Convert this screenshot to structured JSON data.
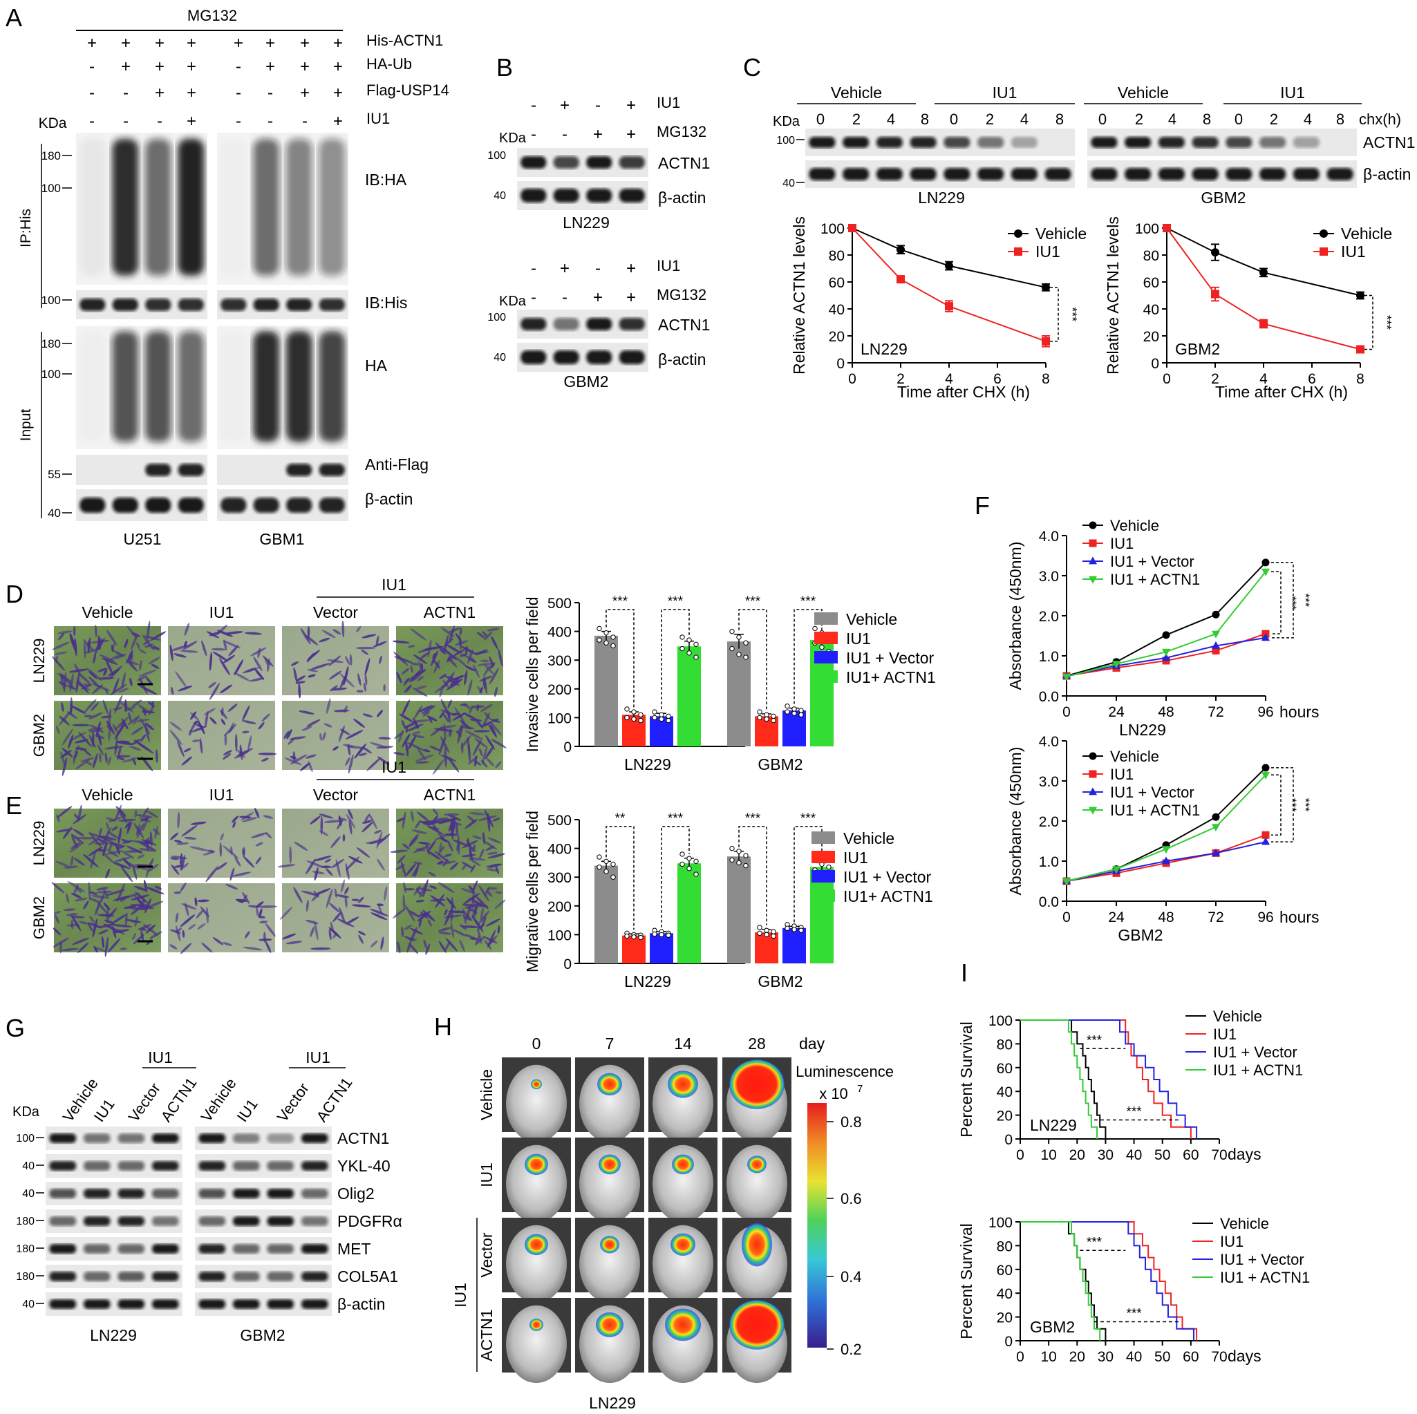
{
  "panels": {
    "A": {
      "letter": "A",
      "mg132": "MG132",
      "kda": "KDa",
      "cond_labels": [
        "His-ACTN1",
        "HA-Ub",
        "Flag-USP14",
        "IU1"
      ],
      "signs": [
        [
          "+",
          "+",
          "+",
          "+",
          "+",
          "+",
          "+",
          "+"
        ],
        [
          "-",
          "+",
          "+",
          "+",
          "-",
          "+",
          "+",
          "+"
        ],
        [
          "-",
          "-",
          "+",
          "+",
          "-",
          "-",
          "+",
          "+"
        ],
        [
          "-",
          "-",
          "-",
          "+",
          "-",
          "-",
          "-",
          "+"
        ]
      ],
      "side_ip": "IP:His",
      "side_input": "Input",
      "blot_labels": [
        "IB:HA",
        "IB:His",
        "HA",
        "Anti-Flag",
        "β-actin"
      ],
      "markers": [
        "180",
        "100",
        "100",
        "180",
        "100",
        "55",
        "40"
      ],
      "cells": [
        "U251",
        "GBM1"
      ]
    },
    "B": {
      "letter": "B",
      "row_labels": [
        "IU1",
        "MG132"
      ],
      "kda": "KDa",
      "signs": [
        [
          "-",
          "+",
          "-",
          "+"
        ],
        [
          "-",
          "-",
          "+",
          "+"
        ]
      ],
      "blot_labels": [
        "ACTN1",
        "β-actin"
      ],
      "markers": [
        "100",
        "40"
      ],
      "cells": [
        "LN229",
        "GBM2"
      ]
    },
    "C": {
      "letter": "C",
      "kda": "KDa",
      "groups": [
        "Vehicle",
        "IU1",
        "Vehicle",
        "IU1"
      ],
      "times": [
        "0",
        "2",
        "4",
        "8",
        "0",
        "2",
        "4",
        "8",
        "0",
        "2",
        "4",
        "8",
        "0",
        "2",
        "4",
        "8"
      ],
      "chx": "chx(h)",
      "blot_labels": [
        "ACTN1",
        "β-actin"
      ],
      "markers": [
        "100",
        "40"
      ],
      "cells": [
        "LN229",
        "GBM2"
      ]
    },
    "D": {
      "letter": "D",
      "iu1": "IU1",
      "col_labels": [
        "Vehicle",
        "IU1",
        "Vector",
        "ACTN1"
      ],
      "row_labels": [
        "LN229",
        "GBM2"
      ]
    },
    "E": {
      "letter": "E",
      "iu1": "IU1",
      "col_labels": [
        "Vehicle",
        "IU1",
        "Vector",
        "ACTN1"
      ],
      "row_labels": [
        "LN229",
        "GBM2"
      ]
    },
    "F": {
      "letter": "F"
    },
    "G": {
      "letter": "G",
      "kda": "KDa",
      "iu1": "IU1",
      "lanes": [
        "Vehicle",
        "IU1",
        "Vector",
        "ACTN1",
        "Vehicle",
        "IU1",
        "Vector",
        "ACTN1"
      ],
      "blot_labels": [
        "ACTN1",
        "YKL-40",
        "Olig2",
        "PDGFRα",
        "MET",
        "COL5A1",
        "β-actin"
      ],
      "markers": [
        "100",
        "40",
        "40",
        "180",
        "180",
        "180",
        "40"
      ],
      "cells": [
        "LN229",
        "GBM2"
      ]
    },
    "H": {
      "letter": "H",
      "days": [
        "0",
        "7",
        "14",
        "28"
      ],
      "day_word": "day",
      "rows": [
        "Vehicle",
        "IU1",
        "Vector",
        "ACTN1"
      ],
      "iu1_group": "IU1",
      "lum_label": "Luminescence",
      "lum_unit": "x 10",
      "lum_exp": "7",
      "scale_ticks": [
        "0.8",
        "0.6",
        "0.4",
        "0.2"
      ],
      "bottom": "LN229"
    },
    "I": {
      "letter": "I"
    }
  },
  "colors": {
    "vehicle": "#000000",
    "iu1": "#ee2222",
    "iu1_vector": "#2222dd",
    "iu1_actn1": "#33cc33",
    "bar_vehicle": "#8c8c8c",
    "bar_iu1": "#ff2a1a",
    "bar_vector": "#1f1fff",
    "bar_actn1": "#33dd33"
  },
  "chart_data": [
    {
      "id": "C-LN229",
      "type": "line",
      "xlabel": "Time after CHX (h)",
      "ylabel": "Relative ACTN1 levels",
      "xlim": [
        0,
        8
      ],
      "ylim": [
        0,
        100
      ],
      "xticks": [
        0,
        2,
        4,
        6,
        8
      ],
      "yticks": [
        0,
        20,
        40,
        60,
        80,
        100
      ],
      "annotation": "LN229",
      "sig": "***",
      "series": [
        {
          "name": "Vehicle",
          "x": [
            0,
            2,
            4,
            8
          ],
          "y": [
            100,
            84,
            72,
            56
          ],
          "err": [
            0,
            3,
            3,
            2.5
          ]
        },
        {
          "name": "IU1",
          "x": [
            0,
            2,
            4,
            8
          ],
          "y": [
            100,
            62,
            42,
            16
          ],
          "err": [
            0,
            2,
            4,
            4
          ]
        }
      ]
    },
    {
      "id": "C-GBM2",
      "type": "line",
      "xlabel": "Time after CHX (h)",
      "ylabel": "Relative ACTN1 levels",
      "xlim": [
        0,
        8
      ],
      "ylim": [
        0,
        100
      ],
      "xticks": [
        0,
        2,
        4,
        6,
        8
      ],
      "yticks": [
        0,
        20,
        40,
        60,
        80,
        100
      ],
      "annotation": "GBM2",
      "sig": "***",
      "series": [
        {
          "name": "Vehicle",
          "x": [
            0,
            2,
            4,
            8
          ],
          "y": [
            100,
            82,
            67,
            50
          ],
          "err": [
            0,
            6,
            3,
            2.5
          ]
        },
        {
          "name": "IU1",
          "x": [
            0,
            2,
            4,
            8
          ],
          "y": [
            100,
            51,
            29,
            10
          ],
          "err": [
            0,
            5,
            3,
            1
          ]
        }
      ]
    },
    {
      "id": "D",
      "type": "bar",
      "ylabel": "Invasive cells per field",
      "categories": [
        "LN229",
        "GBM2"
      ],
      "ylim": [
        0,
        500
      ],
      "yticks": [
        0,
        100,
        200,
        300,
        400,
        500
      ],
      "sig": [
        "***",
        "***",
        "***",
        "***"
      ],
      "series": [
        {
          "name": "Vehicle",
          "values": [
            385,
            365
          ],
          "err": [
            15,
            25
          ]
        },
        {
          "name": "IU1",
          "values": [
            110,
            105
          ],
          "err": [
            10,
            8
          ]
        },
        {
          "name": "IU1 + Vector",
          "values": [
            105,
            125
          ],
          "err": [
            10,
            8
          ]
        },
        {
          "name": "IU1+ ACTN1",
          "values": [
            348,
            370
          ],
          "err": [
            18,
            20
          ]
        }
      ],
      "dots": [
        [
          [
            410,
            395,
            380,
            370,
            360,
            350
          ],
          [
            400,
            380,
            360,
            340,
            320,
            310
          ]
        ],
        [
          [
            130,
            120,
            110,
            100,
            95,
            90
          ],
          [
            120,
            110,
            105,
            100,
            95,
            90
          ]
        ],
        [
          [
            120,
            110,
            105,
            100,
            95,
            90
          ],
          [
            140,
            130,
            125,
            120,
            115,
            110
          ]
        ],
        [
          [
            380,
            370,
            355,
            340,
            325,
            310
          ],
          [
            410,
            395,
            375,
            360,
            345,
            330
          ]
        ]
      ]
    },
    {
      "id": "E",
      "type": "bar",
      "ylabel": "Migrative cells per field",
      "categories": [
        "LN229",
        "GBM2"
      ],
      "ylim": [
        0,
        500
      ],
      "yticks": [
        0,
        100,
        200,
        300,
        400,
        500
      ],
      "sig": [
        "**",
        "***",
        "***",
        "***"
      ],
      "series": [
        {
          "name": "Vehicle",
          "values": [
            340,
            372
          ],
          "err": [
            15,
            18
          ]
        },
        {
          "name": "IU1",
          "values": [
            97,
            108
          ],
          "err": [
            6,
            10
          ]
        },
        {
          "name": "IU1 + Vector",
          "values": [
            105,
            123
          ],
          "err": [
            6,
            6
          ]
        },
        {
          "name": "IU1+ ACTN1",
          "values": [
            348,
            335
          ],
          "err": [
            18,
            15
          ]
        }
      ],
      "dots": [
        [
          [
            370,
            355,
            345,
            335,
            320,
            300
          ],
          [
            400,
            390,
            375,
            360,
            350,
            340
          ]
        ],
        [
          [
            105,
            100,
            98,
            95,
            92,
            90
          ],
          [
            125,
            115,
            110,
            105,
            100,
            95
          ]
        ],
        [
          [
            115,
            110,
            105,
            102,
            100,
            98
          ],
          [
            135,
            130,
            125,
            122,
            118,
            115
          ]
        ],
        [
          [
            380,
            365,
            355,
            345,
            330,
            310
          ],
          [
            360,
            345,
            335,
            325,
            315,
            300
          ]
        ]
      ]
    },
    {
      "id": "F-LN229",
      "type": "line",
      "ylabel": "Absorbance (450nm)",
      "xlabel": "hours",
      "caption": "LN229",
      "xlim": [
        0,
        96
      ],
      "ylim": [
        0,
        4
      ],
      "xticks": [
        0,
        24,
        48,
        72,
        96
      ],
      "yticks": [
        "0.0",
        "1.0",
        "2.0",
        "3.0",
        "4.0"
      ],
      "sig": [
        "***",
        "***"
      ],
      "series": [
        {
          "name": "Vehicle",
          "x": [
            0,
            24,
            48,
            72,
            96
          ],
          "y": [
            0.5,
            0.85,
            1.52,
            2.03,
            3.33
          ]
        },
        {
          "name": "IU1",
          "x": [
            0,
            24,
            48,
            72,
            96
          ],
          "y": [
            0.5,
            0.7,
            0.88,
            1.13,
            1.55
          ]
        },
        {
          "name": "IU1 + Vector",
          "x": [
            0,
            24,
            48,
            72,
            96
          ],
          "y": [
            0.5,
            0.75,
            0.95,
            1.25,
            1.45
          ]
        },
        {
          "name": "IU1 + ACTN1",
          "x": [
            0,
            24,
            48,
            72,
            96
          ],
          "y": [
            0.48,
            0.8,
            1.1,
            1.55,
            3.1
          ]
        }
      ]
    },
    {
      "id": "F-GBM2",
      "type": "line",
      "ylabel": "Absorbance (450nm)",
      "xlabel": "hours",
      "caption": "GBM2",
      "xlim": [
        0,
        96
      ],
      "ylim": [
        0,
        4
      ],
      "xticks": [
        0,
        24,
        48,
        72,
        96
      ],
      "yticks": [
        "0.0",
        "1.0",
        "2.0",
        "3.0",
        "4.0"
      ],
      "sig": [
        "***",
        "***"
      ],
      "series": [
        {
          "name": "Vehicle",
          "x": [
            0,
            24,
            48,
            72,
            96
          ],
          "y": [
            0.5,
            0.8,
            1.4,
            2.1,
            3.33
          ]
        },
        {
          "name": "IU1",
          "x": [
            0,
            24,
            48,
            72,
            96
          ],
          "y": [
            0.5,
            0.7,
            0.95,
            1.2,
            1.65
          ]
        },
        {
          "name": "IU1 + Vector",
          "x": [
            0,
            24,
            48,
            72,
            96
          ],
          "y": [
            0.5,
            0.75,
            1.0,
            1.2,
            1.48
          ]
        },
        {
          "name": "IU1 + ACTN1",
          "x": [
            0,
            24,
            48,
            72,
            96
          ],
          "y": [
            0.5,
            0.8,
            1.3,
            1.85,
            3.15
          ]
        }
      ]
    },
    {
      "id": "I-LN229",
      "type": "line",
      "ylabel": "Percent Survival",
      "xlabel": "days",
      "xlim": [
        0,
        70
      ],
      "ylim": [
        0,
        100
      ],
      "xticks": [
        0,
        10,
        20,
        30,
        40,
        50,
        60,
        70
      ],
      "yticks": [
        0,
        20,
        40,
        60,
        80,
        100
      ],
      "annotation": "LN229",
      "sig": [
        "***",
        "***"
      ],
      "series": [
        {
          "name": "Vehicle",
          "x": [
            0,
            18,
            20,
            22,
            23,
            24,
            25,
            26,
            27,
            28,
            29,
            30
          ],
          "y": [
            100,
            90,
            80,
            70,
            60,
            50,
            40,
            30,
            20,
            10,
            10,
            0
          ]
        },
        {
          "name": "IU1",
          "x": [
            0,
            37,
            38,
            39,
            41,
            43,
            45,
            47,
            50,
            53,
            56,
            60
          ],
          "y": [
            100,
            90,
            80,
            70,
            60,
            50,
            40,
            30,
            20,
            10,
            10,
            0
          ]
        },
        {
          "name": "IU1 + Vector",
          "x": [
            0,
            35,
            37,
            40,
            44,
            47,
            49,
            52,
            55,
            58,
            60,
            62
          ],
          "y": [
            100,
            90,
            80,
            70,
            60,
            50,
            40,
            30,
            20,
            10,
            10,
            0
          ]
        },
        {
          "name": "IU1 + ACTN1",
          "x": [
            0,
            17,
            18,
            19,
            20,
            21,
            22,
            23,
            24,
            25,
            26,
            27
          ],
          "y": [
            100,
            90,
            80,
            70,
            60,
            50,
            40,
            30,
            20,
            10,
            10,
            0
          ]
        }
      ]
    },
    {
      "id": "I-GBM2",
      "type": "line",
      "ylabel": "Percent Survival",
      "xlabel": "days",
      "xlim": [
        0,
        70
      ],
      "ylim": [
        0,
        100
      ],
      "xticks": [
        0,
        10,
        20,
        30,
        40,
        50,
        60,
        70
      ],
      "yticks": [
        0,
        20,
        40,
        60,
        80,
        100
      ],
      "annotation": "GBM2",
      "sig": [
        "***",
        "***"
      ],
      "series": [
        {
          "name": "Vehicle",
          "x": [
            0,
            17,
            19,
            20,
            21,
            23,
            24,
            25,
            26,
            27,
            28,
            30
          ],
          "y": [
            100,
            90,
            80,
            70,
            60,
            50,
            40,
            30,
            20,
            10,
            10,
            0
          ]
        },
        {
          "name": "IU1",
          "x": [
            0,
            40,
            43,
            45,
            47,
            49,
            51,
            53,
            55,
            57,
            60,
            62
          ],
          "y": [
            100,
            90,
            80,
            70,
            60,
            50,
            40,
            30,
            20,
            10,
            10,
            0
          ]
        },
        {
          "name": "IU1 + Vector",
          "x": [
            0,
            38,
            40,
            42,
            44,
            46,
            48,
            50,
            52,
            55,
            58,
            61
          ],
          "y": [
            100,
            90,
            80,
            70,
            60,
            50,
            40,
            30,
            20,
            10,
            10,
            0
          ]
        },
        {
          "name": "IU1 + ACTN1",
          "x": [
            0,
            18,
            19,
            20,
            21,
            22,
            23,
            24,
            25,
            26,
            27,
            28
          ],
          "y": [
            100,
            90,
            80,
            70,
            60,
            50,
            40,
            30,
            20,
            10,
            10,
            0
          ]
        }
      ]
    }
  ]
}
